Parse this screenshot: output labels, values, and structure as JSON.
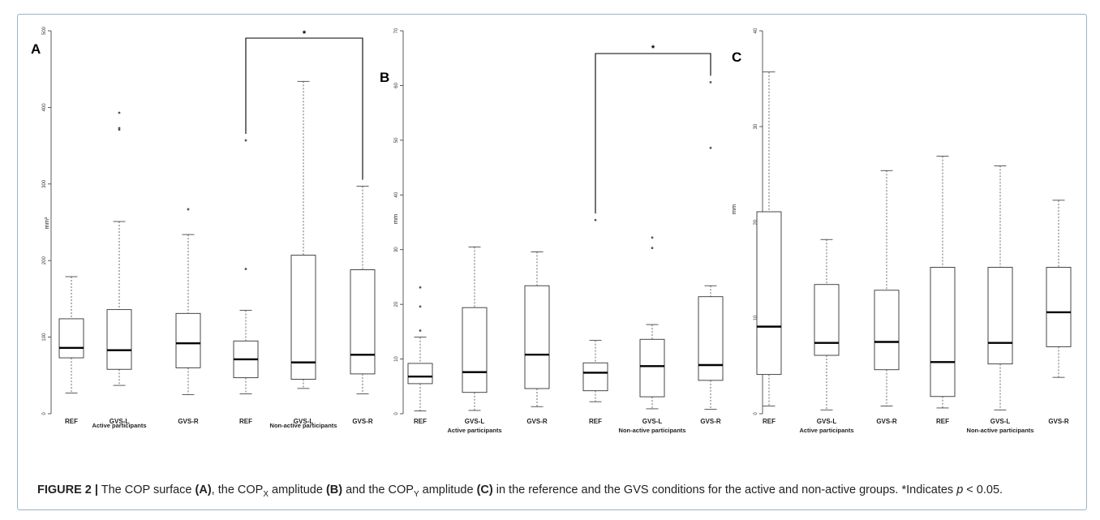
{
  "chart_data": [
    {
      "type": "boxplot",
      "panel_label": "A",
      "ylabel": "mm²",
      "ylim": [
        0,
        500
      ],
      "yticks": [
        0,
        100,
        200,
        300,
        400,
        500
      ],
      "categories": [
        "REF",
        "GVS-L",
        "GVS-R",
        "REF",
        "GVS-L",
        "GVS-R"
      ],
      "groups": [
        {
          "label": "Active participants",
          "center_index": 1
        },
        {
          "label": "Non-active participants",
          "center_index": 4
        }
      ],
      "boxes": [
        {
          "min": 27,
          "q1": 73,
          "median": 86,
          "q3": 124,
          "max": 179,
          "outliers": []
        },
        {
          "min": 37,
          "q1": 58,
          "median": 83,
          "q3": 136,
          "max": 251,
          "outliers": [
            371,
            373,
            393
          ]
        },
        {
          "min": 25,
          "q1": 60,
          "median": 92,
          "q3": 131,
          "max": 234,
          "outliers": [
            267
          ]
        },
        {
          "min": 26,
          "q1": 47,
          "median": 71,
          "q3": 95,
          "max": 135,
          "outliers": [
            189,
            357
          ]
        },
        {
          "min": 33,
          "q1": 45,
          "median": 67,
          "q3": 207,
          "max": 434,
          "outliers": []
        },
        {
          "min": 26,
          "q1": 52,
          "median": 77,
          "q3": 188,
          "max": 297,
          "outliers": []
        }
      ],
      "significance": {
        "from_index": 3,
        "to_index": 5,
        "label": "*"
      }
    },
    {
      "type": "boxplot",
      "panel_label": "B",
      "ylabel": "mm",
      "ylim": [
        0,
        70
      ],
      "yticks": [
        0,
        10,
        20,
        30,
        40,
        50,
        60,
        70
      ],
      "categories": [
        "REF",
        "GVS-L",
        "GVS-R",
        "REF",
        "GVS-L",
        "GVS-R"
      ],
      "groups": [
        {
          "label": "Active participants",
          "center_index": 1
        },
        {
          "label": "Non-active participants",
          "center_index": 4
        }
      ],
      "boxes": [
        {
          "min": 0.5,
          "q1": 5.5,
          "median": 6.8,
          "q3": 9.2,
          "max": 14,
          "outliers": [
            15.2,
            19.6,
            23.1
          ]
        },
        {
          "min": 0.6,
          "q1": 3.9,
          "median": 7.6,
          "q3": 19.4,
          "max": 30.5,
          "outliers": []
        },
        {
          "min": 1.3,
          "q1": 4.6,
          "median": 10.8,
          "q3": 23.4,
          "max": 29.6,
          "outliers": []
        },
        {
          "min": 2.2,
          "q1": 4.2,
          "median": 7.5,
          "q3": 9.3,
          "max": 13.4,
          "outliers": [
            35.4
          ]
        },
        {
          "min": 0.9,
          "q1": 3.1,
          "median": 8.7,
          "q3": 13.6,
          "max": 16.3,
          "outliers": [
            30.3,
            32.2
          ]
        },
        {
          "min": 0.8,
          "q1": 6.1,
          "median": 8.9,
          "q3": 21.4,
          "max": 23.4,
          "outliers": [
            48.6,
            60.6
          ]
        }
      ],
      "significance": {
        "from_index": 3,
        "to_index": 5,
        "label": "*"
      }
    },
    {
      "type": "boxplot",
      "panel_label": "C",
      "ylabel": "mm",
      "ylim": [
        0,
        40
      ],
      "yticks": [
        0,
        10,
        20,
        30,
        40
      ],
      "categories": [
        "REF",
        "GVS-L",
        "GVS-R",
        "REF",
        "GVS-L",
        "GVS-R"
      ],
      "groups": [
        {
          "label": "Active participants",
          "center_index": 1
        },
        {
          "label": "Non-active participants",
          "center_index": 4
        }
      ],
      "boxes": [
        {
          "min": 0.8,
          "q1": 4.1,
          "median": 9.1,
          "q3": 21.1,
          "max": 35.7,
          "outliers": []
        },
        {
          "min": 0.4,
          "q1": 6.1,
          "median": 7.4,
          "q3": 13.5,
          "max": 18.2,
          "outliers": []
        },
        {
          "min": 0.8,
          "q1": 4.6,
          "median": 7.5,
          "q3": 12.9,
          "max": 25.4,
          "outliers": []
        },
        {
          "min": 0.6,
          "q1": 1.8,
          "median": 5.4,
          "q3": 15.3,
          "max": 26.9,
          "outliers": []
        },
        {
          "min": 0.4,
          "q1": 5.2,
          "median": 7.4,
          "q3": 15.3,
          "max": 25.9,
          "outliers": []
        },
        {
          "min": 3.8,
          "q1": 7.0,
          "median": 10.6,
          "q3": 15.3,
          "max": 22.3,
          "outliers": []
        }
      ],
      "significance": null
    }
  ],
  "caption": {
    "figure_label": "FIGURE 2 |",
    "parts": [
      {
        "text": " The COP surface ",
        "bold": false
      },
      {
        "text": "(A)",
        "bold": true
      },
      {
        "text": ", the COP",
        "bold": false
      },
      {
        "text": "X",
        "sub": true
      },
      {
        "text": " amplitude ",
        "bold": false
      },
      {
        "text": "(B)",
        "bold": true
      },
      {
        "text": " and the COP",
        "bold": false
      },
      {
        "text": "Y",
        "sub": true
      },
      {
        "text": " amplitude ",
        "bold": false
      },
      {
        "text": "(C)",
        "bold": true
      },
      {
        "text": " in the reference and the GVS conditions for the active and non-active groups. *Indicates ",
        "bold": false
      },
      {
        "text": "p",
        "italic": true
      },
      {
        "text": " < 0.05.",
        "bold": false
      }
    ]
  }
}
